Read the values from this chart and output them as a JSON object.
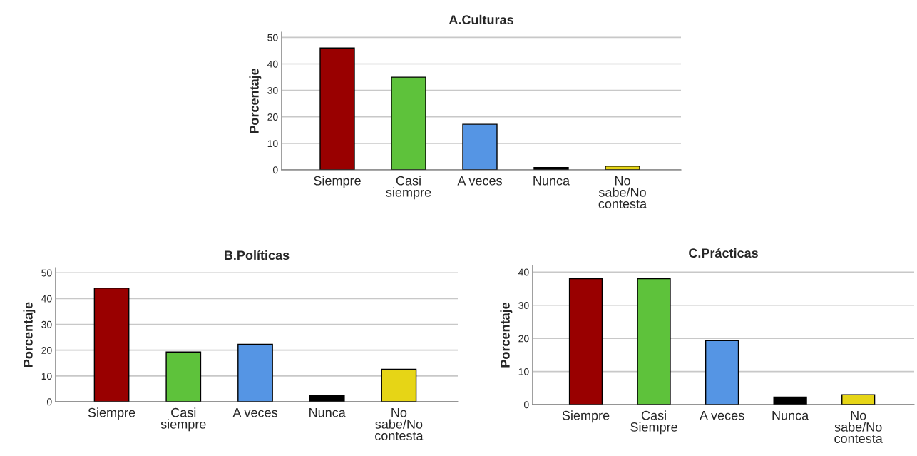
{
  "chart_data": [
    {
      "type": "bar",
      "title": "A.Culturas",
      "ylabel": "Porcentaje",
      "categories": [
        "Siempre",
        "Casi\nsiempre",
        "A veces",
        "Nunca",
        "No\nsabe/No\ncontesta"
      ],
      "values": [
        46,
        35,
        17.2,
        0.9,
        1.4
      ],
      "colors": [
        "#990000",
        "#5ec23b",
        "#5595e4",
        "#000000",
        "#e6d516"
      ],
      "ylim": [
        0,
        52
      ],
      "yticks": [
        0,
        10,
        20,
        30,
        40,
        50
      ],
      "grid": "y",
      "legend": false
    },
    {
      "type": "bar",
      "title": "B.Políticas",
      "ylabel": "Porcentaje",
      "categories": [
        "Siempre",
        "Casi\nsiempre",
        "A veces",
        "Nunca",
        "No\nsabe/No\ncontesta"
      ],
      "values": [
        44,
        19.3,
        22.3,
        2.3,
        12.6
      ],
      "colors": [
        "#990000",
        "#5ec23b",
        "#5595e4",
        "#000000",
        "#e6d516"
      ],
      "ylim": [
        0,
        52
      ],
      "yticks": [
        0,
        10,
        20,
        30,
        40,
        50
      ],
      "grid": "y",
      "legend": false
    },
    {
      "type": "bar",
      "title": "C.Prácticas",
      "ylabel": "Porcentaje",
      "categories": [
        "Siempre",
        "Casi\nSiempre",
        "A veces",
        "Nunca",
        "No\nsabe/No\ncontesta"
      ],
      "values": [
        38,
        38,
        19.3,
        2.3,
        3
      ],
      "colors": [
        "#990000",
        "#5ec23b",
        "#5595e4",
        "#000000",
        "#e6d516"
      ],
      "ylim": [
        0,
        42
      ],
      "yticks": [
        0,
        10,
        20,
        30,
        40
      ],
      "grid": "y",
      "legend": false
    }
  ]
}
